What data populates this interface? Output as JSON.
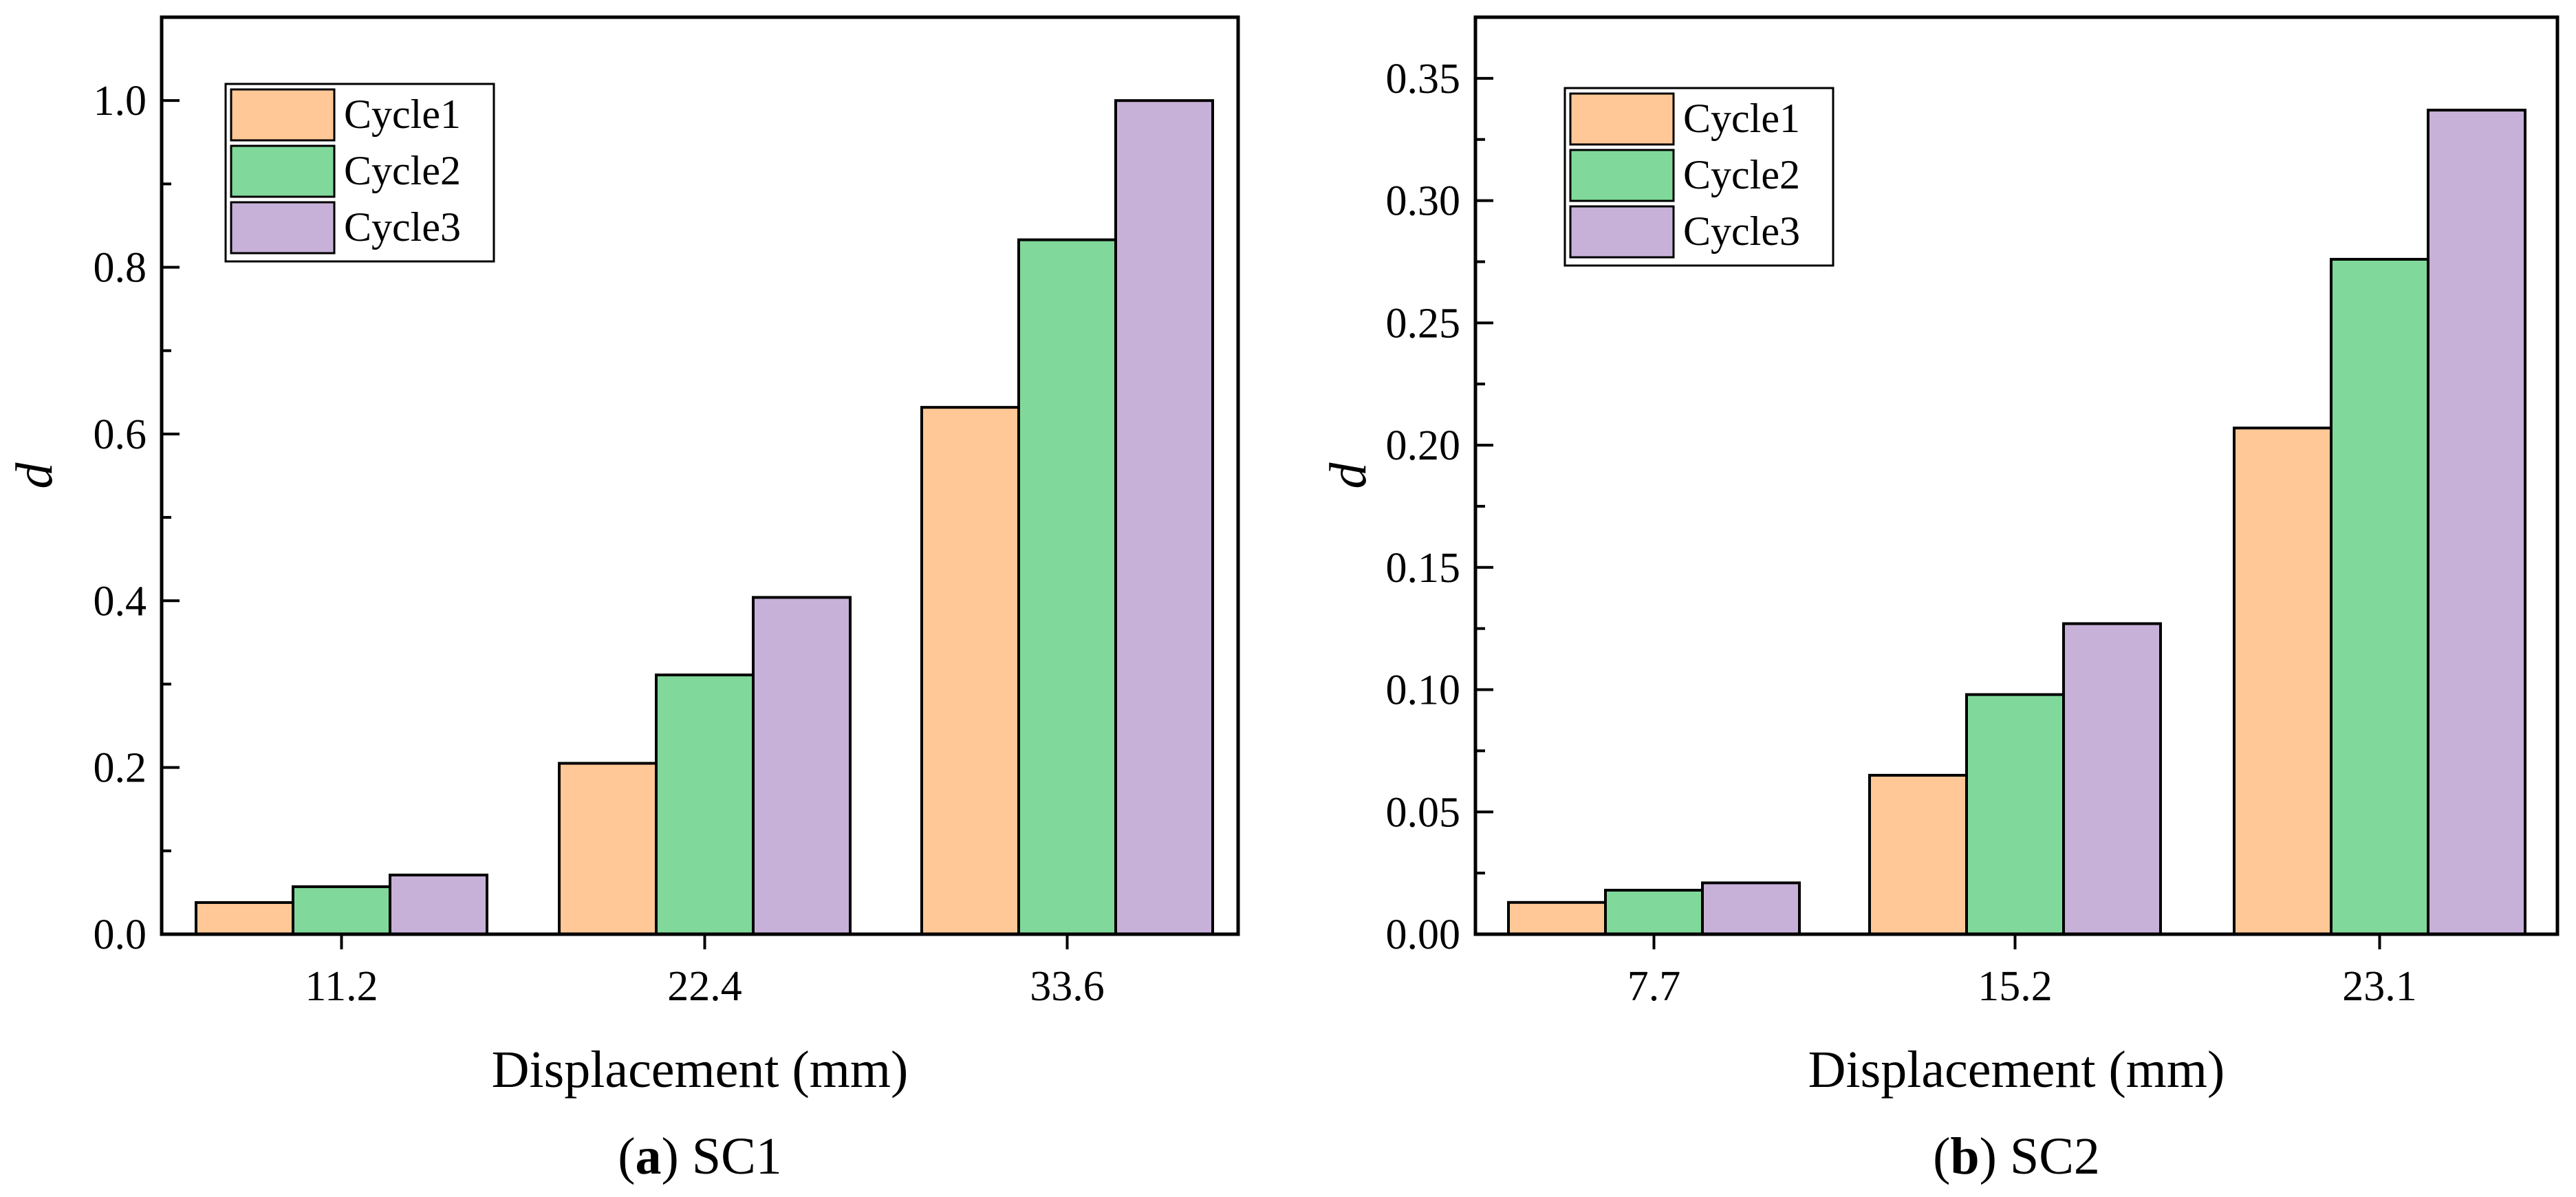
{
  "chart_data": [
    {
      "id": "a",
      "type": "bar",
      "caption_letter": "a",
      "caption_text": "SC1",
      "xlabel": "Displacement (mm)",
      "ylabel": "d",
      "categories": [
        "11.2",
        "22.4",
        "33.6"
      ],
      "series": [
        {
          "name": "Cycle1",
          "color": "#FFC896",
          "values": [
            0.038,
            0.205,
            0.632
          ]
        },
        {
          "name": "Cycle2",
          "color": "#80D99A",
          "values": [
            0.057,
            0.311,
            0.833
          ]
        },
        {
          "name": "Cycle3",
          "color": "#C8B1D8",
          "values": [
            0.071,
            0.404,
            1.0
          ]
        }
      ],
      "ylim": [
        0,
        1.1
      ],
      "yticks": [
        0.0,
        0.2,
        0.4,
        0.6,
        0.8,
        1.0
      ],
      "ytick_labels": [
        "0.0",
        "0.2",
        "0.4",
        "0.6",
        "0.8",
        "1.0"
      ],
      "legend_position": "top-left"
    },
    {
      "id": "b",
      "type": "bar",
      "caption_letter": "b",
      "caption_text": "SC2",
      "xlabel": "Displacement (mm)",
      "ylabel": "d",
      "categories": [
        "7.7",
        "15.2",
        "23.1"
      ],
      "series": [
        {
          "name": "Cycle1",
          "color": "#FFC896",
          "values": [
            0.013,
            0.065,
            0.207
          ]
        },
        {
          "name": "Cycle2",
          "color": "#80D99A",
          "values": [
            0.018,
            0.098,
            0.276
          ]
        },
        {
          "name": "Cycle3",
          "color": "#C8B1D8",
          "values": [
            0.021,
            0.127,
            0.337
          ]
        }
      ],
      "ylim": [
        0,
        0.375
      ],
      "yticks": [
        0.0,
        0.05,
        0.1,
        0.15,
        0.2,
        0.25,
        0.3,
        0.35
      ],
      "ytick_labels": [
        "0.00",
        "0.05",
        "0.10",
        "0.15",
        "0.20",
        "0.25",
        "0.30",
        "0.35"
      ],
      "legend_position": "top-left"
    }
  ]
}
